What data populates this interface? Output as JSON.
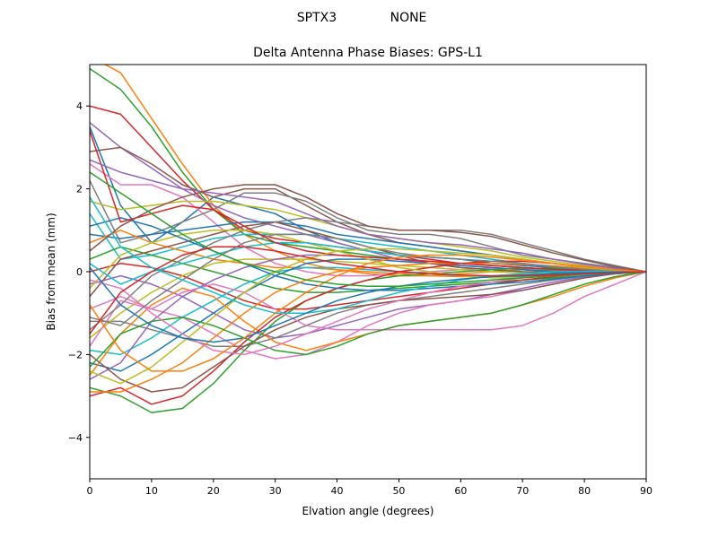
{
  "suptitle": {
    "left": "SPTX3",
    "right": "NONE"
  },
  "chart_data": {
    "type": "line",
    "title": "Delta Antenna Phase Biases: GPS-L1",
    "xlabel": "Elvation angle (degrees)",
    "ylabel": "Bias from mean (mm)",
    "xlim": [
      0,
      90
    ],
    "ylim": [
      -5,
      5
    ],
    "xticks": [
      0,
      10,
      20,
      30,
      40,
      50,
      60,
      70,
      80,
      90
    ],
    "yticks": [
      -4,
      -2,
      0,
      2,
      4
    ],
    "xtick_labels": [
      "0",
      "10",
      "20",
      "30",
      "40",
      "50",
      "60",
      "70",
      "80",
      "90"
    ],
    "ytick_labels": [
      "−4",
      "−2",
      "0",
      "2",
      "4"
    ],
    "grid": false,
    "legend": "none",
    "colors": [
      "#1f77b4",
      "#ff7f0e",
      "#2ca02c",
      "#d62728",
      "#9467bd",
      "#8c564b",
      "#e377c2",
      "#7f7f7f",
      "#bcbd22",
      "#17becf"
    ],
    "x": [
      0,
      5,
      10,
      15,
      20,
      25,
      30,
      35,
      40,
      45,
      50,
      55,
      60,
      65,
      70,
      75,
      80,
      85,
      90
    ],
    "series": [
      {
        "values": [
          3.5,
          1.6,
          0.7,
          1.2,
          1.8,
          1.6,
          1.4,
          1.0,
          0.7,
          0.5,
          0.4,
          0.35,
          0.3,
          0.2,
          0.15,
          0.1,
          0.05,
          0.02,
          0
        ]
      },
      {
        "values": [
          5.2,
          4.8,
          3.7,
          2.6,
          1.6,
          0.9,
          0.5,
          0.2,
          0.05,
          -0.05,
          -0.1,
          -0.1,
          -0.05,
          0.0,
          0.05,
          0.05,
          0.03,
          0.01,
          0
        ]
      },
      {
        "values": [
          4.9,
          4.4,
          3.5,
          2.4,
          1.5,
          0.9,
          0.7,
          0.6,
          0.5,
          0.4,
          0.3,
          0.2,
          0.15,
          0.1,
          0.05,
          0.02,
          0.01,
          0.0,
          0
        ]
      },
      {
        "values": [
          4.0,
          3.8,
          3.0,
          2.2,
          1.5,
          1.0,
          0.8,
          0.7,
          0.6,
          0.5,
          0.4,
          0.3,
          0.2,
          0.15,
          0.1,
          0.05,
          0.02,
          0.01,
          0
        ]
      },
      {
        "values": [
          3.6,
          3.0,
          2.5,
          2.0,
          1.6,
          1.3,
          1.1,
          0.9,
          0.7,
          0.5,
          0.3,
          0.2,
          0.1,
          0.05,
          0.0,
          -0.02,
          -0.02,
          -0.01,
          0
        ]
      },
      {
        "values": [
          2.9,
          3.0,
          2.6,
          2.1,
          1.8,
          2.0,
          2.0,
          1.6,
          1.2,
          0.9,
          0.7,
          0.6,
          0.5,
          0.4,
          0.3,
          0.2,
          0.1,
          0.05,
          0
        ]
      },
      {
        "values": [
          2.6,
          2.1,
          2.1,
          1.8,
          1.2,
          0.6,
          0.2,
          0.0,
          -0.1,
          -0.1,
          -0.05,
          0.0,
          0.05,
          0.08,
          0.08,
          0.06,
          0.04,
          0.02,
          0
        ]
      },
      {
        "values": [
          2.2,
          0.7,
          0.9,
          1.2,
          1.5,
          1.9,
          1.9,
          1.7,
          1.3,
          1.0,
          0.9,
          0.9,
          0.8,
          0.6,
          0.4,
          0.3,
          0.2,
          0.1,
          0
        ]
      },
      {
        "values": [
          1.7,
          1.5,
          1.6,
          1.7,
          1.7,
          1.6,
          1.5,
          1.3,
          1.1,
          0.9,
          0.8,
          0.7,
          0.6,
          0.5,
          0.35,
          0.25,
          0.15,
          0.05,
          0
        ]
      },
      {
        "values": [
          1.4,
          0.3,
          0.4,
          0.6,
          0.8,
          0.9,
          0.9,
          0.9,
          0.8,
          0.7,
          0.6,
          0.5,
          0.4,
          0.3,
          0.2,
          0.12,
          0.08,
          0.04,
          0
        ]
      },
      {
        "values": [
          0.9,
          0.8,
          0.9,
          1.0,
          1.1,
          1.2,
          1.2,
          1.1,
          0.9,
          0.8,
          0.7,
          0.6,
          0.5,
          0.4,
          0.3,
          0.2,
          0.1,
          0.05,
          0
        ]
      },
      {
        "values": [
          0.7,
          1.0,
          0.7,
          0.5,
          0.3,
          0.2,
          0.1,
          0.1,
          0.05,
          0.0,
          -0.05,
          -0.1,
          -0.12,
          -0.12,
          -0.1,
          -0.08,
          -0.05,
          -0.02,
          0
        ]
      },
      {
        "values": [
          0.3,
          0.6,
          0.4,
          0.2,
          0.0,
          -0.2,
          -0.4,
          -0.5,
          -0.5,
          -0.45,
          -0.4,
          -0.35,
          -0.3,
          -0.25,
          -0.2,
          -0.15,
          -0.1,
          -0.05,
          0
        ]
      },
      {
        "values": [
          0.0,
          0.2,
          0.1,
          -0.1,
          -0.4,
          -0.7,
          -0.9,
          -0.9,
          -0.8,
          -0.7,
          -0.6,
          -0.5,
          -0.4,
          -0.3,
          -0.2,
          -0.12,
          -0.06,
          -0.02,
          0
        ]
      },
      {
        "values": [
          -0.3,
          -0.1,
          -0.3,
          -0.6,
          -1.0,
          -1.4,
          -1.6,
          -1.5,
          -1.3,
          -1.1,
          -0.9,
          -0.8,
          -0.7,
          -0.55,
          -0.4,
          -0.25,
          -0.12,
          -0.05,
          0
        ]
      },
      {
        "values": [
          -0.6,
          0.3,
          0.5,
          0.7,
          0.9,
          1.1,
          1.2,
          1.0,
          0.8,
          0.6,
          0.4,
          0.2,
          0.1,
          0.05,
          0.0,
          -0.02,
          -0.02,
          -0.01,
          0
        ]
      },
      {
        "values": [
          -0.9,
          -0.6,
          -0.9,
          -1.1,
          -1.5,
          -1.9,
          -2.1,
          -2.0,
          -1.7,
          -1.3,
          -1.0,
          -0.8,
          -0.7,
          -0.6,
          -0.45,
          -0.3,
          -0.15,
          -0.05,
          0
        ]
      },
      {
        "values": [
          -1.2,
          -1.2,
          -1.4,
          -1.6,
          -1.8,
          -1.8,
          -1.6,
          -1.3,
          -1.0,
          -0.8,
          -0.7,
          -0.6,
          -0.5,
          -0.4,
          -0.3,
          -0.2,
          -0.1,
          -0.05,
          0
        ]
      },
      {
        "values": [
          -1.6,
          -1.0,
          -0.5,
          -0.1,
          0.2,
          0.3,
          0.3,
          0.3,
          0.25,
          0.2,
          0.15,
          0.1,
          0.05,
          0.0,
          -0.03,
          -0.05,
          -0.04,
          -0.02,
          0
        ]
      },
      {
        "values": [
          -1.9,
          -2.0,
          -1.6,
          -1.1,
          -0.7,
          -0.3,
          0.0,
          0.1,
          0.1,
          0.05,
          0.0,
          -0.05,
          -0.1,
          -0.12,
          -0.12,
          -0.1,
          -0.06,
          -0.03,
          0
        ]
      },
      {
        "values": [
          -2.2,
          -2.4,
          -2.0,
          -1.5,
          -1.0,
          -0.5,
          -0.1,
          0.2,
          0.3,
          0.3,
          0.25,
          0.2,
          0.15,
          0.1,
          0.05,
          0.0,
          -0.02,
          -0.01,
          0
        ]
      },
      {
        "values": [
          -2.5,
          -1.5,
          -0.8,
          -0.4,
          -0.6,
          -1.2,
          -1.7,
          -1.9,
          -1.7,
          -1.5,
          -1.3,
          -1.2,
          -1.1,
          -1.0,
          -0.8,
          -0.6,
          -0.35,
          -0.15,
          0
        ]
      },
      {
        "values": [
          -2.8,
          -3.0,
          -3.4,
          -3.3,
          -2.7,
          -1.9,
          -1.2,
          -0.7,
          -0.4,
          -0.2,
          -0.1,
          -0.05,
          0.0,
          0.05,
          0.08,
          0.08,
          0.05,
          0.02,
          0
        ]
      },
      {
        "values": [
          -3.0,
          -2.8,
          -3.2,
          -3.0,
          -2.4,
          -1.7,
          -1.1,
          -0.7,
          -0.4,
          -0.2,
          0.0,
          0.1,
          0.2,
          0.25,
          0.25,
          0.2,
          0.12,
          0.05,
          0
        ]
      },
      {
        "values": [
          -2.6,
          -2.2,
          -1.2,
          -0.6,
          -0.2,
          0.1,
          0.3,
          0.4,
          0.4,
          0.35,
          0.3,
          0.25,
          0.2,
          0.15,
          0.1,
          0.05,
          0.02,
          0.01,
          0
        ]
      },
      {
        "values": [
          -2.0,
          -2.6,
          -2.9,
          -2.8,
          -2.3,
          -1.8,
          -1.4,
          -1.1,
          -0.9,
          -0.8,
          -0.7,
          -0.65,
          -0.6,
          -0.55,
          -0.45,
          -0.3,
          -0.15,
          -0.05,
          0
        ]
      },
      {
        "values": [
          -1.8,
          -0.7,
          -0.9,
          -0.5,
          -0.3,
          -0.5,
          -0.9,
          -1.3,
          -1.4,
          -1.4,
          -1.4,
          -1.4,
          -1.4,
          -1.4,
          -1.3,
          -1.0,
          -0.6,
          -0.3,
          0
        ]
      },
      {
        "values": [
          -1.4,
          -0.8,
          -0.1,
          0.3,
          0.7,
          1.0,
          1.2,
          1.3,
          1.2,
          1.1,
          1.0,
          1.0,
          1.0,
          0.9,
          0.7,
          0.5,
          0.3,
          0.15,
          0
        ]
      },
      {
        "values": [
          -0.4,
          0.4,
          0.7,
          0.9,
          1.0,
          1.0,
          0.9,
          0.7,
          0.5,
          0.3,
          0.1,
          0.0,
          -0.1,
          -0.15,
          -0.15,
          -0.1,
          -0.06,
          -0.03,
          0
        ]
      },
      {
        "values": [
          0.2,
          -0.3,
          0.0,
          0.2,
          0.4,
          0.6,
          0.7,
          0.7,
          0.6,
          0.5,
          0.4,
          0.35,
          0.3,
          0.25,
          0.2,
          0.12,
          0.06,
          0.02,
          0
        ]
      },
      {
        "values": [
          1.1,
          1.3,
          1.1,
          0.8,
          0.5,
          0.2,
          -0.1,
          -0.3,
          -0.4,
          -0.45,
          -0.45,
          -0.4,
          -0.35,
          -0.3,
          -0.25,
          -0.18,
          -0.1,
          -0.04,
          0
        ]
      },
      {
        "values": [
          -2.9,
          -2.9,
          -2.6,
          -2.2,
          -1.6,
          -1.0,
          -0.5,
          -0.2,
          0.0,
          0.1,
          0.15,
          0.2,
          0.2,
          0.2,
          0.18,
          0.14,
          0.08,
          0.03,
          0
        ]
      },
      {
        "values": [
          -2.3,
          -1.5,
          -1.2,
          -1.1,
          -1.3,
          -1.6,
          -1.9,
          -2.0,
          -1.8,
          -1.5,
          -1.3,
          -1.2,
          -1.1,
          -1.0,
          -0.8,
          -0.55,
          -0.3,
          -0.12,
          0
        ]
      },
      {
        "values": [
          3.4,
          1.2,
          1.4,
          1.6,
          1.5,
          1.1,
          0.7,
          0.5,
          0.4,
          0.35,
          0.3,
          0.25,
          0.2,
          0.15,
          0.1,
          0.06,
          0.03,
          0.01,
          0
        ]
      },
      {
        "values": [
          2.7,
          2.4,
          2.2,
          2.0,
          1.9,
          1.8,
          1.7,
          1.4,
          1.1,
          0.9,
          0.8,
          0.7,
          0.65,
          0.55,
          0.45,
          0.3,
          0.18,
          0.08,
          0
        ]
      },
      {
        "values": [
          0.5,
          1.1,
          1.5,
          1.8,
          2.0,
          2.1,
          2.1,
          1.8,
          1.4,
          1.1,
          1.0,
          1.0,
          0.95,
          0.85,
          0.65,
          0.45,
          0.28,
          0.12,
          0
        ]
      },
      {
        "values": [
          -0.2,
          -0.4,
          -1.0,
          -1.5,
          -1.9,
          -2.0,
          -1.8,
          -1.5,
          -1.2,
          -0.9,
          -0.7,
          -0.5,
          -0.35,
          -0.25,
          -0.15,
          -0.08,
          -0.04,
          -0.01,
          0
        ]
      },
      {
        "values": [
          -1.1,
          -1.3,
          -0.7,
          -0.2,
          0.3,
          0.7,
          0.9,
          0.9,
          0.8,
          0.6,
          0.45,
          0.35,
          0.3,
          0.25,
          0.2,
          0.12,
          0.06,
          0.02,
          0
        ]
      },
      {
        "values": [
          -2.4,
          -2.7,
          -2.3,
          -1.7,
          -1.1,
          -0.5,
          0.0,
          0.3,
          0.5,
          0.55,
          0.55,
          0.5,
          0.45,
          0.4,
          0.3,
          0.2,
          0.1,
          0.04,
          0
        ]
      },
      {
        "values": [
          1.8,
          0.6,
          0.1,
          -0.2,
          -0.5,
          -0.8,
          -1.0,
          -1.0,
          -0.9,
          -0.7,
          -0.5,
          -0.35,
          -0.2,
          -0.1,
          -0.05,
          0.0,
          0.01,
          0.01,
          0
        ]
      },
      {
        "values": [
          0.1,
          -0.8,
          -1.3,
          -1.6,
          -1.7,
          -1.6,
          -1.3,
          -1.0,
          -0.7,
          -0.5,
          -0.35,
          -0.25,
          -0.18,
          -0.12,
          -0.08,
          -0.05,
          -0.03,
          -0.01,
          0
        ]
      },
      {
        "values": [
          -0.8,
          -1.9,
          -2.4,
          -2.4,
          -2.1,
          -1.6,
          -1.0,
          -0.5,
          -0.1,
          0.2,
          0.35,
          0.4,
          0.4,
          0.35,
          0.28,
          0.2,
          0.12,
          0.05,
          0
        ]
      },
      {
        "values": [
          2.4,
          1.9,
          1.4,
          0.9,
          0.5,
          0.2,
          0.0,
          -0.2,
          -0.3,
          -0.35,
          -0.35,
          -0.3,
          -0.25,
          -0.2,
          -0.15,
          -0.1,
          -0.06,
          -0.02,
          0
        ]
      },
      {
        "values": [
          -1.5,
          -0.5,
          0.0,
          0.4,
          0.6,
          0.6,
          0.5,
          0.35,
          0.2,
          0.1,
          0.0,
          -0.05,
          -0.08,
          -0.1,
          -0.1,
          -0.08,
          -0.05,
          -0.02,
          0
        ]
      }
    ]
  }
}
